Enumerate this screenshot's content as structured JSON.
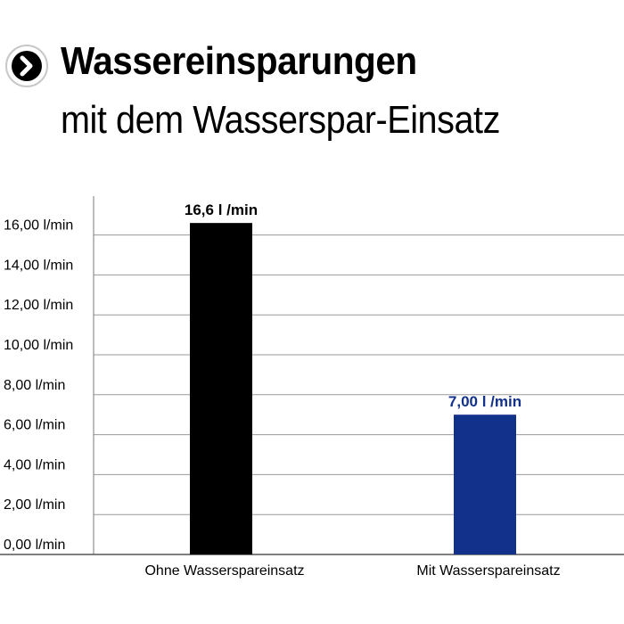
{
  "header": {
    "title": "Wassereinsparungen",
    "subtitle": "mit dem Wasserspar-Einsatz",
    "icon": "chevron-right-icon"
  },
  "colors": {
    "bar_ohne": "#000000",
    "bar_mit": "#12318a",
    "label_mit": "#12318a",
    "grid": "#9a9a9a"
  },
  "chart_data": {
    "type": "bar",
    "categories": [
      "Ohne Wasserspareinsatz",
      "Mit Wasserspareinsatz"
    ],
    "values": [
      16.6,
      7.0
    ],
    "data_labels": [
      "16,6 l /min",
      "7,00 l /min"
    ],
    "y_ticks": [
      0,
      2,
      4,
      6,
      8,
      10,
      12,
      14,
      16
    ],
    "y_tick_labels": [
      "0,00 l/min",
      "2,00 l/min",
      "4,00 l/min",
      "6,00 l/min",
      "8,00 l/min",
      "10,00 l/min",
      "12,00 l/min",
      "14,00 l/min",
      "16,00 l/min"
    ],
    "ylim": [
      0,
      18
    ],
    "grid": true,
    "title": "",
    "xlabel": "",
    "ylabel": ""
  }
}
